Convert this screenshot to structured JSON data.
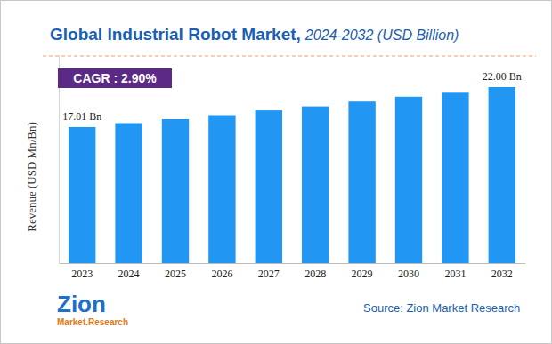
{
  "chart_data": {
    "type": "bar",
    "title": "Global Industrial Robot Market,",
    "subtitle": "2024-2032 (USD Billion)",
    "y_label": "Revenue (USD Mn/Bn)",
    "categories": [
      "2023",
      "2024",
      "2025",
      "2026",
      "2027",
      "2028",
      "2029",
      "2030",
      "2031",
      "2032"
    ],
    "values": [
      17.01,
      17.5,
      18.0,
      18.5,
      19.1,
      19.6,
      20.2,
      20.8,
      21.3,
      22.0
    ],
    "color": "#2196f3",
    "ylim": [
      0,
      26
    ],
    "yticks": [],
    "tick_labels": "x",
    "grid": false,
    "annotations": [
      {
        "text": "CAGR : 2.90%"
      },
      {
        "category": "2023",
        "value": 17.01,
        "label": "17.01 Bn"
      },
      {
        "category": "2032",
        "value": 22.0,
        "label": "22.00 Bn"
      }
    ],
    "source": "Source: Zion Market Research",
    "logo": [
      "Zion",
      "Market.Research"
    ]
  }
}
